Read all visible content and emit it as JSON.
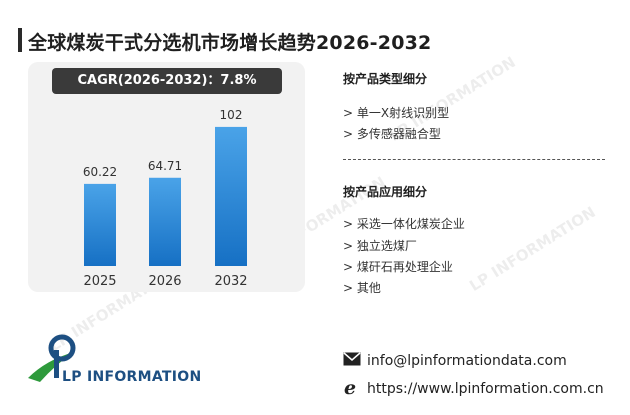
{
  "header": {
    "title": "全球煤炭干式分选机市场增长趋势2026-2032"
  },
  "chart_data": {
    "type": "bar",
    "cagr_label": "CAGR(2026-2032)：7.8%",
    "categories": [
      "2025",
      "2026",
      "2032"
    ],
    "values": [
      60.22,
      64.71,
      102
    ],
    "value_labels": [
      "60.22",
      "64.71",
      "102"
    ],
    "ylim": [
      0,
      110
    ],
    "colors": {
      "bar_top": "#4aa3e8",
      "bar_bottom": "#1670c4"
    }
  },
  "segments": {
    "by_type": {
      "heading": "按产品类型细分",
      "items": [
        "> 单一X射线识别型",
        "> 多传感器融合型"
      ]
    },
    "by_application": {
      "heading": "按产品应用细分",
      "items": [
        "> 采选一体化煤炭企业",
        "> 独立选煤厂",
        "> 煤矸石再处理企业",
        "> 其他"
      ]
    }
  },
  "contact": {
    "email": "info@lpinformationdata.com",
    "website": "https://www.lpinformation.com.cn",
    "email_icon": "envelope-icon",
    "web_icon": "browser-e-icon"
  },
  "logo": {
    "text": "LP INFORMATION"
  },
  "watermark": {
    "text": "LP INFORMATION"
  }
}
